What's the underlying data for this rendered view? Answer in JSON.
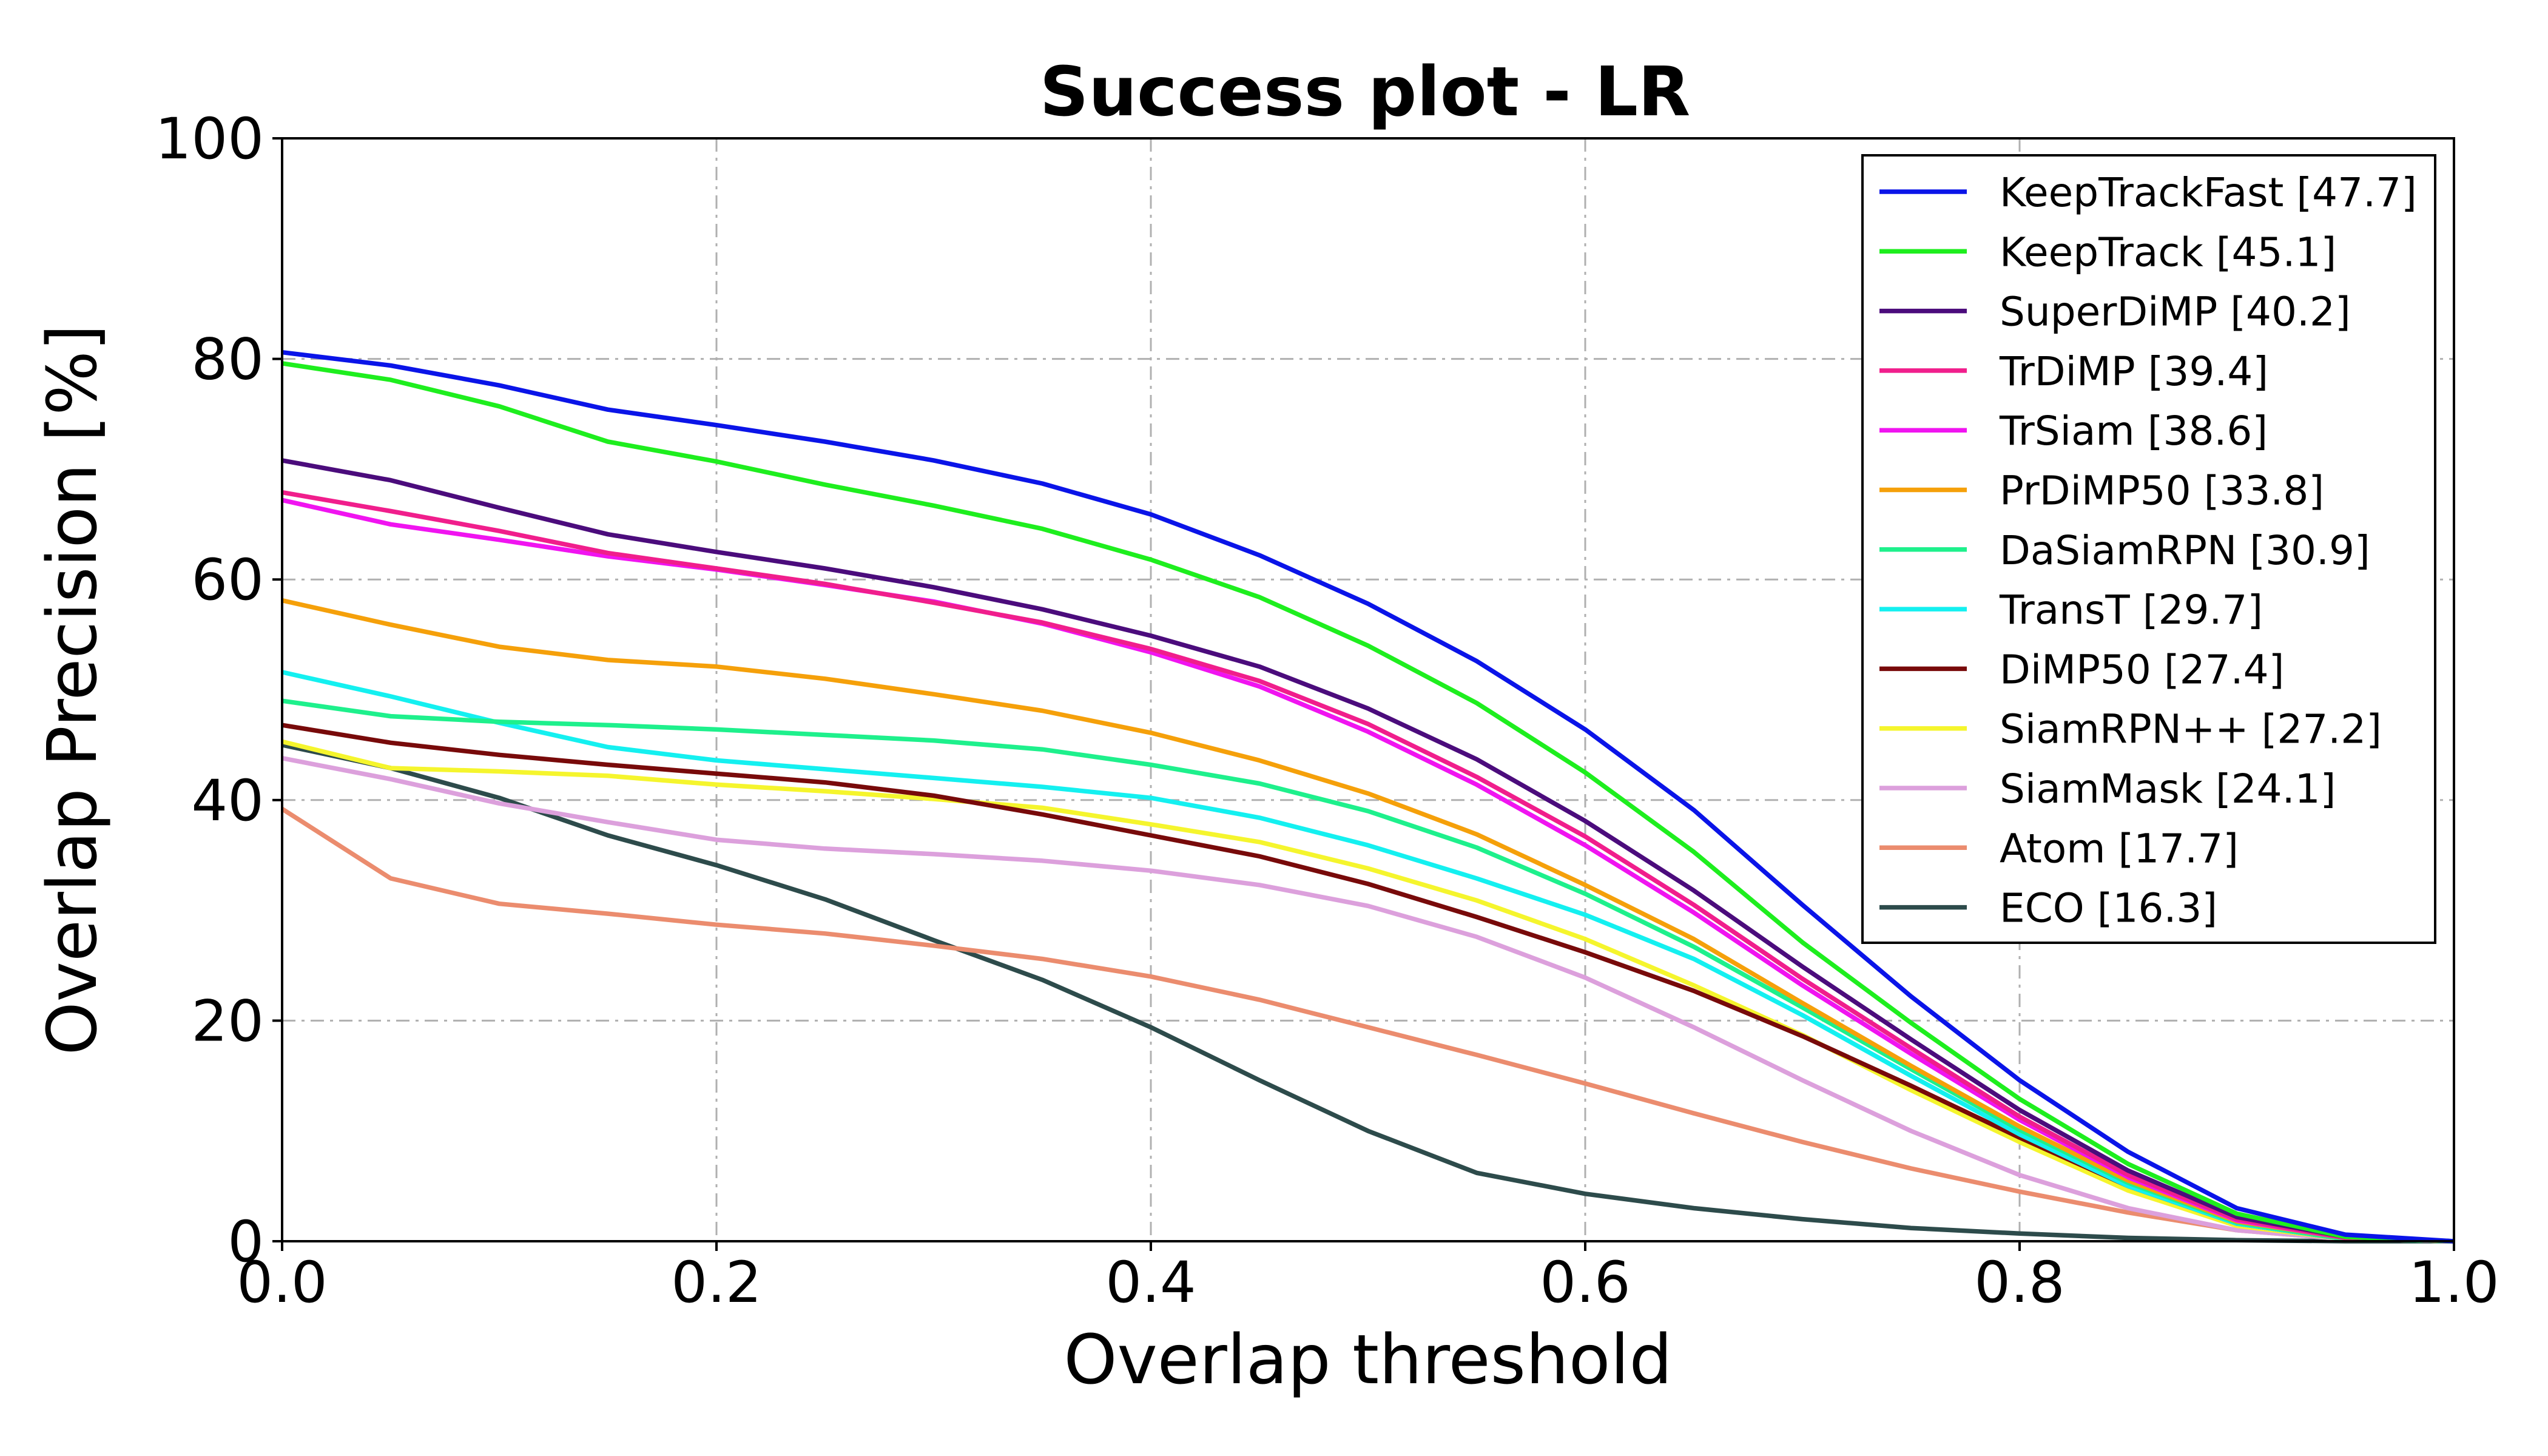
{
  "chart_data": {
    "type": "line",
    "title": "Success plot - LR",
    "xlabel": "Overlap threshold",
    "ylabel": "Overlap Precision [%]",
    "xlim": [
      0,
      1
    ],
    "ylim": [
      0,
      100
    ],
    "xticks": [
      0,
      0.2,
      0.4,
      0.6,
      0.8,
      1.0
    ],
    "xtick_labels": [
      "0.0",
      "0.2",
      "0.4",
      "0.6",
      "0.8",
      "1.0"
    ],
    "yticks": [
      0,
      20,
      40,
      60,
      80,
      100
    ],
    "ytick_labels": [
      "0",
      "20",
      "40",
      "60",
      "80",
      "100"
    ],
    "grid": true,
    "legend_position": "top-right",
    "x": [
      0,
      0.05,
      0.1,
      0.15,
      0.2,
      0.25,
      0.3,
      0.35,
      0.4,
      0.45,
      0.5,
      0.55,
      0.6,
      0.65,
      0.7,
      0.75,
      0.8,
      0.85,
      0.9,
      0.95,
      1.0
    ],
    "series": [
      {
        "name": "KeepTrackFast [47.7]",
        "color": "#0a14e8",
        "values": [
          80.6,
          79.4,
          77.6,
          75.4,
          74.0,
          72.5,
          70.8,
          68.7,
          65.9,
          62.2,
          57.8,
          52.6,
          46.4,
          39.1,
          30.5,
          22.2,
          14.6,
          8.1,
          3.0,
          0.6,
          0.0
        ]
      },
      {
        "name": "KeepTrack [45.1]",
        "color": "#1eee1e",
        "values": [
          79.6,
          78.1,
          75.7,
          72.5,
          70.7,
          68.6,
          66.7,
          64.6,
          61.8,
          58.4,
          54.0,
          48.8,
          42.5,
          35.3,
          27.1,
          19.8,
          12.9,
          7.0,
          2.5,
          0.4,
          0.0
        ]
      },
      {
        "name": "SuperDiMP [40.2]",
        "color": "#4b0c7c",
        "values": [
          70.8,
          69.0,
          66.5,
          64.1,
          62.5,
          61.0,
          59.3,
          57.3,
          54.9,
          52.1,
          48.3,
          43.7,
          38.1,
          31.8,
          24.9,
          18.3,
          11.9,
          6.4,
          2.2,
          0.4,
          0.0
        ]
      },
      {
        "name": "TrDiMP [39.4]",
        "color": "#f01e8c",
        "values": [
          67.9,
          66.2,
          64.4,
          62.4,
          61.0,
          59.6,
          57.9,
          56.1,
          53.7,
          50.8,
          46.9,
          42.1,
          36.7,
          30.5,
          23.8,
          17.5,
          11.3,
          6.0,
          2.0,
          0.3,
          0.0
        ]
      },
      {
        "name": "TrSiam [38.6]",
        "color": "#f014f0",
        "values": [
          67.2,
          65.0,
          63.6,
          62.1,
          60.9,
          59.5,
          58.0,
          56.0,
          53.4,
          50.3,
          46.2,
          41.4,
          35.9,
          29.8,
          23.2,
          17.0,
          11.0,
          5.8,
          1.9,
          0.3,
          0.0
        ]
      },
      {
        "name": "PrDiMP50 [33.8]",
        "color": "#f5a00a",
        "values": [
          58.1,
          55.9,
          53.9,
          52.7,
          52.1,
          51.0,
          49.6,
          48.1,
          46.1,
          43.6,
          40.6,
          36.9,
          32.3,
          27.4,
          21.6,
          15.9,
          10.4,
          5.5,
          1.8,
          0.3,
          0.0
        ]
      },
      {
        "name": "DaSiamRPN [30.9]",
        "color": "#1ef08c",
        "values": [
          49.0,
          47.6,
          47.1,
          46.8,
          46.4,
          45.9,
          45.4,
          44.6,
          43.2,
          41.5,
          39.0,
          35.7,
          31.5,
          26.7,
          21.2,
          15.6,
          10.1,
          5.3,
          1.7,
          0.2,
          0.0
        ]
      },
      {
        "name": "TransT [29.7]",
        "color": "#14f0f0",
        "values": [
          51.6,
          49.4,
          47.0,
          44.8,
          43.6,
          42.8,
          42.0,
          41.2,
          40.2,
          38.4,
          35.9,
          32.9,
          29.6,
          25.6,
          20.5,
          15.0,
          9.7,
          5.0,
          1.6,
          0.2,
          0.0
        ]
      },
      {
        "name": "DiMP50 [27.4]",
        "color": "#780a0a",
        "values": [
          46.8,
          45.2,
          44.1,
          43.2,
          42.4,
          41.6,
          40.4,
          38.7,
          36.8,
          34.9,
          32.4,
          29.4,
          26.2,
          22.7,
          18.6,
          14.1,
          9.4,
          5.0,
          1.6,
          0.2,
          0.0
        ]
      },
      {
        "name": "SiamRPN++ [27.2]",
        "color": "#f5f52d",
        "values": [
          45.3,
          42.9,
          42.6,
          42.2,
          41.4,
          40.8,
          40.1,
          39.3,
          37.8,
          36.2,
          33.8,
          30.9,
          27.4,
          23.2,
          18.7,
          13.7,
          9.0,
          4.6,
          1.4,
          0.2,
          0.0
        ]
      },
      {
        "name": "SiamMask [24.1]",
        "color": "#dca0dc",
        "values": [
          43.8,
          41.9,
          39.7,
          38.0,
          36.4,
          35.6,
          35.1,
          34.5,
          33.6,
          32.3,
          30.4,
          27.6,
          23.9,
          19.4,
          14.6,
          10.0,
          6.0,
          3.0,
          1.0,
          0.2,
          0.0
        ]
      },
      {
        "name": "Atom [17.7]",
        "color": "#eb8c6e",
        "values": [
          39.2,
          32.9,
          30.6,
          29.7,
          28.7,
          27.9,
          26.8,
          25.6,
          24.0,
          21.9,
          19.4,
          16.9,
          14.3,
          11.6,
          9.0,
          6.6,
          4.5,
          2.6,
          1.0,
          0.2,
          0.0
        ]
      },
      {
        "name": "ECO [16.3]",
        "color": "#2d4b4b",
        "values": [
          45.0,
          42.9,
          40.2,
          36.8,
          34.1,
          31.0,
          27.3,
          23.7,
          19.4,
          14.6,
          10.0,
          6.2,
          4.3,
          3.0,
          2.0,
          1.2,
          0.7,
          0.3,
          0.1,
          0.0,
          0.0
        ]
      }
    ]
  }
}
